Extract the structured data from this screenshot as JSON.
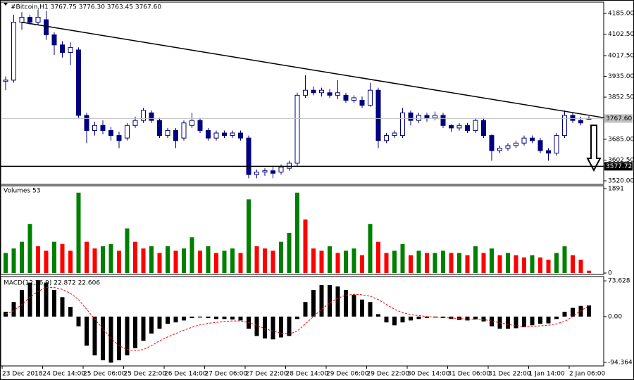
{
  "chart_data": [
    {
      "type": "candlestick",
      "title": "#Bitcoin,H1  3767.75 3776.30 3763.45 3767.60",
      "categories": [
        "23 Dec 2018",
        null,
        null,
        null,
        null,
        "24 Dec 14:00",
        null,
        null,
        null,
        null,
        "25 Dec 06:00",
        null,
        null,
        null,
        null,
        "25 Dec 22:00",
        null,
        null,
        null,
        null,
        "26 Dec 14:00",
        null,
        null,
        null,
        null,
        "27 Dec 06:00",
        null,
        null,
        null,
        null,
        "27 Dec 22:00",
        null,
        null,
        null,
        null,
        "28 Dec 14:00",
        null,
        null,
        null,
        null,
        "29 Dec 06:00",
        null,
        null,
        null,
        null,
        "29 Dec 22:00",
        null,
        null,
        null,
        null,
        "30 Dec 14:00",
        null,
        null,
        null,
        null,
        "31 Dec 06:00",
        null,
        null,
        null,
        null,
        "31 Dec 22:00",
        null,
        null,
        null,
        null,
        "1 Jan 14:00",
        null,
        null,
        null,
        null,
        "2 Jan 06:00",
        null,
        null
      ],
      "open": [
        3915,
        3920,
        4150,
        4170,
        4150,
        4160,
        4100,
        4060,
        4030,
        4040,
        3780,
        3720,
        3740,
        3720,
        3700,
        3690,
        3740,
        3760,
        3790,
        3760,
        3700,
        3720,
        3690,
        3740,
        3760,
        3720,
        3690,
        3710,
        3700,
        3710,
        3690,
        3545,
        3555,
        3560,
        3555,
        3570,
        3590,
        3860,
        3880,
        3870,
        3870,
        3860,
        3860,
        3840,
        3840,
        3820,
        3880,
        3680,
        3700,
        3700,
        3790,
        3760,
        3780,
        3770,
        3780,
        3740,
        3730,
        3740,
        3720,
        3760,
        3700,
        3640,
        3650,
        3660,
        3670,
        3690,
        3680,
        3640,
        3630,
        3700,
        3780,
        3760,
        3767.75
      ],
      "high": [
        3935,
        4180,
        4190,
        4180,
        4200,
        4195,
        4110,
        4075,
        4070,
        4050,
        3790,
        3755,
        3760,
        3735,
        3715,
        3750,
        3775,
        3810,
        3800,
        3770,
        3730,
        3730,
        3760,
        3790,
        3770,
        3730,
        3720,
        3720,
        3720,
        3720,
        3700,
        3565,
        3570,
        3575,
        3585,
        3600,
        3870,
        3940,
        3895,
        3890,
        3885,
        3920,
        3870,
        3860,
        3855,
        3910,
        3890,
        3710,
        3720,
        3810,
        3800,
        3790,
        3790,
        3795,
        3790,
        3745,
        3750,
        3750,
        3770,
        3770,
        3705,
        3660,
        3670,
        3680,
        3700,
        3700,
        3690,
        3650,
        3710,
        3800,
        3790,
        3775,
        3776.3
      ],
      "low": [
        3880,
        3910,
        4120,
        4140,
        4140,
        4080,
        4020,
        4010,
        3980,
        3770,
        3670,
        3700,
        3705,
        3680,
        3650,
        3680,
        3730,
        3750,
        3750,
        3690,
        3690,
        3650,
        3680,
        3730,
        3710,
        3680,
        3680,
        3690,
        3690,
        3680,
        3530,
        3530,
        3540,
        3530,
        3545,
        3560,
        3580,
        3850,
        3860,
        3855,
        3850,
        3845,
        3830,
        3830,
        3810,
        3815,
        3650,
        3670,
        3690,
        3690,
        3740,
        3750,
        3755,
        3760,
        3730,
        3715,
        3720,
        3710,
        3710,
        3690,
        3600,
        3630,
        3640,
        3650,
        3660,
        3670,
        3630,
        3600,
        3620,
        3690,
        3750,
        3740,
        3763.45
      ],
      "close": [
        3920,
        4150,
        4170,
        4150,
        4170,
        4100,
        4060,
        4030,
        4050,
        3780,
        3720,
        3740,
        3720,
        3700,
        3680,
        3740,
        3760,
        3800,
        3760,
        3700,
        3720,
        3680,
        3750,
        3760,
        3720,
        3690,
        3710,
        3700,
        3710,
        3690,
        3545,
        3555,
        3560,
        3550,
        3575,
        3590,
        3860,
        3880,
        3870,
        3880,
        3860,
        3870,
        3840,
        3850,
        3820,
        3880,
        3680,
        3700,
        3710,
        3790,
        3760,
        3780,
        3770,
        3780,
        3740,
        3730,
        3740,
        3720,
        3760,
        3700,
        3640,
        3650,
        3660,
        3670,
        3690,
        3680,
        3640,
        3630,
        3700,
        3780,
        3760,
        3750,
        3767.6
      ],
      "color": "#000080",
      "ylim": [
        3506,
        4230
      ],
      "yticks": [
        {
          "value": 4185,
          "label": "4185.00"
        },
        {
          "value": 4102.5,
          "label": "4102.50"
        },
        {
          "value": 4017.5,
          "label": "4017.50"
        },
        {
          "value": 3935,
          "label": "3935.00"
        },
        {
          "value": 3852.5,
          "label": "3852.50"
        },
        {
          "value": 3685,
          "label": "3685.00"
        },
        {
          "value": 3602.5,
          "label": "3602.50"
        },
        {
          "value": 3520,
          "label": "3520.00"
        }
      ],
      "current_price": {
        "value": 3767.6,
        "label": "3767.60"
      },
      "level": {
        "value": 3577.72,
        "label": "3577.72"
      },
      "trendline": {
        "x": [
          2,
          74
        ],
        "y": [
          4150,
          3770
        ]
      }
    },
    {
      "type": "volume",
      "title": "Volumes 53",
      "values": [
        450,
        550,
        700,
        1100,
        600,
        500,
        700,
        650,
        500,
        1800,
        700,
        550,
        600,
        650,
        500,
        1000,
        700,
        550,
        600,
        450,
        600,
        500,
        550,
        800,
        500,
        600,
        450,
        500,
        550,
        450,
        1650,
        600,
        550,
        500,
        700,
        900,
        1800,
        1200,
        550,
        500,
        600,
        450,
        500,
        550,
        400,
        1100,
        700,
        450,
        500,
        650,
        400,
        500,
        450,
        450,
        500,
        450,
        450,
        400,
        600,
        450,
        550,
        400,
        450,
        400,
        350,
        400,
        350,
        300,
        450,
        600,
        400,
        300,
        53
      ],
      "up_color": "#008000",
      "down_color": "#ff0000",
      "ylim": [
        -31,
        1954
      ],
      "yticks": [
        1891,
        0
      ]
    },
    {
      "type": "macd",
      "title": "MACD(12,26,9) 22.872 22.606",
      "values": [
        10,
        30,
        55,
        70,
        75,
        70,
        55,
        40,
        20,
        -20,
        -60,
        -80,
        -90,
        -95,
        -90,
        -80,
        -65,
        -50,
        -35,
        -25,
        -15,
        -12,
        -8,
        -3,
        -2,
        -3,
        -5,
        -5,
        -6,
        -8,
        -25,
        -40,
        -45,
        -47,
        -43,
        -40,
        -5,
        30,
        55,
        65,
        65,
        62,
        55,
        45,
        35,
        30,
        5,
        -12,
        -18,
        -12,
        -8,
        -5,
        -3,
        -2,
        -3,
        -5,
        -7,
        -8,
        -6,
        -10,
        -20,
        -25,
        -25,
        -24,
        -22,
        -18,
        -15,
        -14,
        -5,
        10,
        18,
        22,
        22.872
      ],
      "signal": [
        5,
        12,
        25,
        40,
        52,
        60,
        60,
        56,
        48,
        35,
        15,
        -5,
        -25,
        -45,
        -60,
        -68,
        -70,
        -68,
        -60,
        -50,
        -42,
        -35,
        -28,
        -22,
        -17,
        -14,
        -12,
        -10,
        -9,
        -9,
        -12,
        -18,
        -25,
        -30,
        -34,
        -36,
        -30,
        -15,
        0,
        15,
        28,
        38,
        44,
        46,
        45,
        42,
        35,
        25,
        15,
        8,
        4,
        2,
        0,
        -1,
        -2,
        -3,
        -4,
        -5,
        -5,
        -6,
        -9,
        -13,
        -16,
        -19,
        -20,
        -20,
        -19,
        -18,
        -15,
        -10,
        0,
        12,
        22.606
      ],
      "color": "#000000",
      "signal_color": "#ff0000",
      "ylim": [
        -101.7,
        82.5
      ],
      "yticks": [
        73.628,
        {
          "value": 0,
          "label": "0.00"
        },
        -94.364
      ]
    }
  ]
}
